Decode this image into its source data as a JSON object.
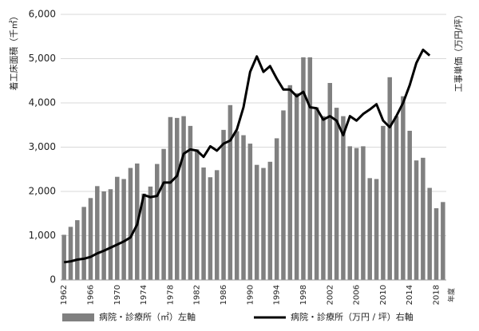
{
  "chart_data": {
    "type": "bar-line",
    "ylabel": "着工床面積（千㎡）",
    "y2label": "工事単価（万円/坪）",
    "xlabel": "年度",
    "categories": [
      "1962",
      null,
      null,
      null,
      "1966",
      null,
      null,
      null,
      "1970",
      null,
      null,
      null,
      "1974",
      null,
      null,
      null,
      "1978",
      null,
      null,
      null,
      "1982",
      null,
      null,
      null,
      "1986",
      null,
      null,
      null,
      "1990",
      null,
      null,
      null,
      "1994",
      null,
      null,
      null,
      "1998",
      null,
      null,
      null,
      "2002",
      null,
      null,
      null,
      "2006",
      null,
      null,
      null,
      "2010",
      null,
      null,
      null,
      "2014",
      null,
      null,
      null,
      "2018",
      null
    ],
    "series": [
      {
        "name": "病院・診療所（㎡）左軸",
        "color": "#808080",
        "kind": "bar",
        "values": [
          1020,
          1200,
          1350,
          1650,
          1850,
          2120,
          2000,
          2050,
          2330,
          2280,
          2530,
          2630,
          1950,
          2110,
          2620,
          2960,
          3680,
          3660,
          3700,
          3480,
          2950,
          2540,
          2320,
          2480,
          3390,
          3950,
          3360,
          3270,
          3080,
          2600,
          2530,
          2670,
          3200,
          3830,
          4400,
          4220,
          5030,
          5030,
          3900,
          3700,
          4450,
          3890,
          3700,
          3020,
          2980,
          3020,
          2300,
          2280,
          3480,
          4580,
          3700,
          4150,
          3370,
          2700,
          2760,
          2080,
          1620,
          1760
        ]
      },
      {
        "name": "病院・診療所（万円 / 坪）右軸",
        "color": "#000000",
        "kind": "line",
        "axis": "y2",
        "values": [
          400,
          420,
          460,
          480,
          520,
          600,
          660,
          730,
          800,
          870,
          960,
          1250,
          1920,
          1870,
          1900,
          2200,
          2200,
          2350,
          2850,
          2950,
          2920,
          2780,
          3020,
          2920,
          3080,
          3150,
          3400,
          3900,
          4700,
          5050,
          4700,
          4830,
          4550,
          4300,
          4300,
          4150,
          4250,
          3900,
          3880,
          3620,
          3700,
          3600,
          3270,
          3700,
          3600,
          3750,
          3850,
          3970,
          3600,
          3450,
          3700,
          4000,
          4400,
          4900,
          5200,
          5070,
          null,
          null
        ]
      }
    ],
    "ylim": [
      0,
      6000
    ],
    "yticks": [
      0,
      {
        "value": 1000,
        "label": "1,000"
      },
      {
        "value": 2000,
        "label": "2,000"
      },
      {
        "value": 3000,
        "label": "3,000"
      },
      {
        "value": 4000,
        "label": "4,000"
      },
      {
        "value": 5000,
        "label": "5,000"
      },
      {
        "value": 6000,
        "label": "6,000"
      }
    ],
    "y2lim": [
      0,
      6000
    ],
    "grid": true
  }
}
